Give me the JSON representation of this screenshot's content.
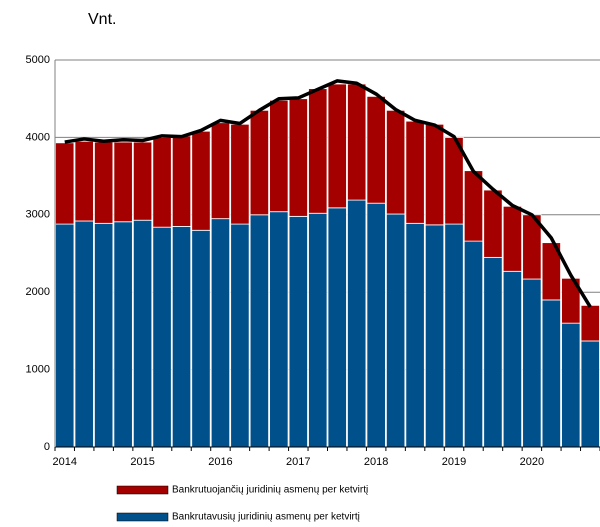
{
  "chart_data": {
    "type": "stacked-bar-line",
    "title": "Vnt.",
    "categories": [
      "2014",
      null,
      null,
      null,
      "2015",
      null,
      null,
      null,
      "2016",
      null,
      null,
      null,
      "2017",
      null,
      null,
      null,
      "2018",
      null,
      null,
      null,
      "2019",
      null,
      null,
      null,
      "2020",
      null,
      null,
      null
    ],
    "series": [
      {
        "name": "Bankrutavusių juridinių asmenų per ketvirtį",
        "color": "#00508c",
        "values": [
          2880,
          2920,
          2890,
          2910,
          2930,
          2840,
          2850,
          2800,
          2950,
          2880,
          3000,
          3040,
          2980,
          3020,
          3090,
          3190,
          3150,
          3010,
          2890,
          2870,
          2880,
          2660,
          2450,
          2270,
          2170,
          1900,
          1600,
          1370
        ]
      },
      {
        "name": "Bankrutuojančių juridinių asmenų per ketvirtį",
        "color": "#a50000",
        "values": [
          1050,
          1030,
          1050,
          1030,
          1010,
          1160,
          1170,
          1280,
          1240,
          1290,
          1350,
          1440,
          1520,
          1610,
          1600,
          1500,
          1380,
          1340,
          1320,
          1300,
          1120,
          910,
          870,
          840,
          830,
          740,
          580,
          460
        ]
      }
    ],
    "line": {
      "color": "#000000",
      "values": [
        3940,
        3980,
        3950,
        3970,
        3960,
        4020,
        4010,
        4090,
        4220,
        4180,
        4350,
        4500,
        4510,
        4620,
        4730,
        4700,
        4560,
        4360,
        4220,
        4160,
        4010,
        3560,
        3330,
        3120,
        3000,
        2700,
        2220,
        1810
      ]
    },
    "ylim": [
      0,
      5000
    ],
    "yticks": [
      0,
      1000,
      2000,
      3000,
      4000,
      5000
    ],
    "grid": true
  }
}
